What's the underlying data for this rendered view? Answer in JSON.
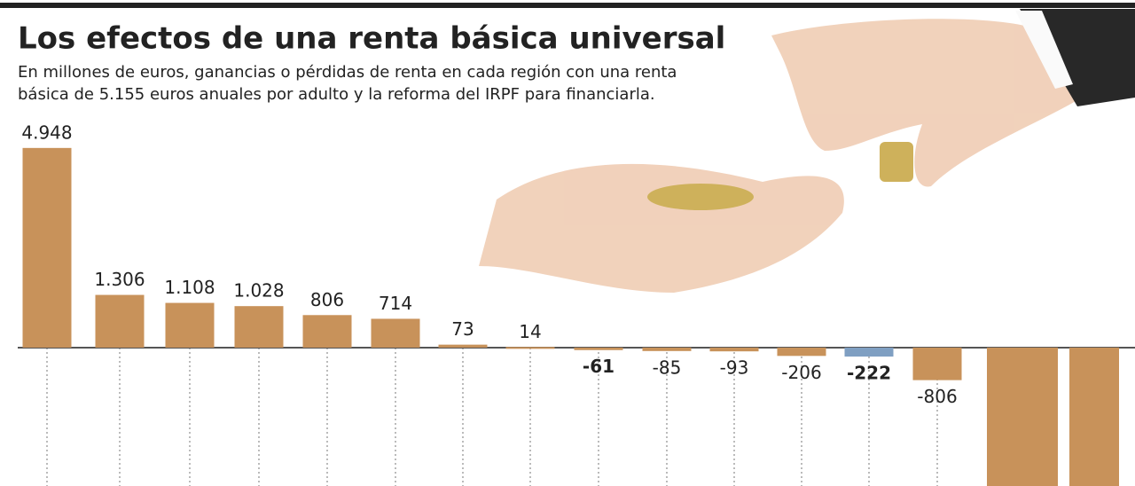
{
  "chart_data": {
    "type": "bar",
    "title": "Los efectos de una renta básica universal",
    "subtitle": [
      "En millones de euros, ganancias o pérdidas de renta en cada región con una renta",
      "básica de 5.155 euros anuales por adulto y la reforma del IRPF para financiarla."
    ],
    "values": [
      4948,
      1306,
      1108,
      1028,
      806,
      714,
      73,
      14,
      -61,
      -85,
      -93,
      -206,
      -222,
      -806,
      -3500,
      -3500
    ],
    "value_labels": [
      "4.948",
      "1.306",
      "1.108",
      "1.028",
      "806",
      "714",
      "73",
      "14",
      "-61",
      "-85",
      "-93",
      "-206",
      "-222",
      "-806",
      null,
      null
    ],
    "bold_labels": [
      false,
      false,
      false,
      false,
      false,
      false,
      false,
      false,
      true,
      false,
      false,
      false,
      true,
      false,
      false,
      false
    ],
    "colors": [
      "#c8925a",
      "#c8925a",
      "#c8925a",
      "#c8925a",
      "#c8925a",
      "#c8925a",
      "#c8925a",
      "#c8925a",
      "#c8925a",
      "#c8925a",
      "#c8925a",
      "#c8925a",
      "#7f9fc2",
      "#c8925a",
      "#c8925a",
      "#c8925a"
    ],
    "ylim": [
      -3430,
      8615
    ],
    "yticks": [
      0
    ]
  }
}
